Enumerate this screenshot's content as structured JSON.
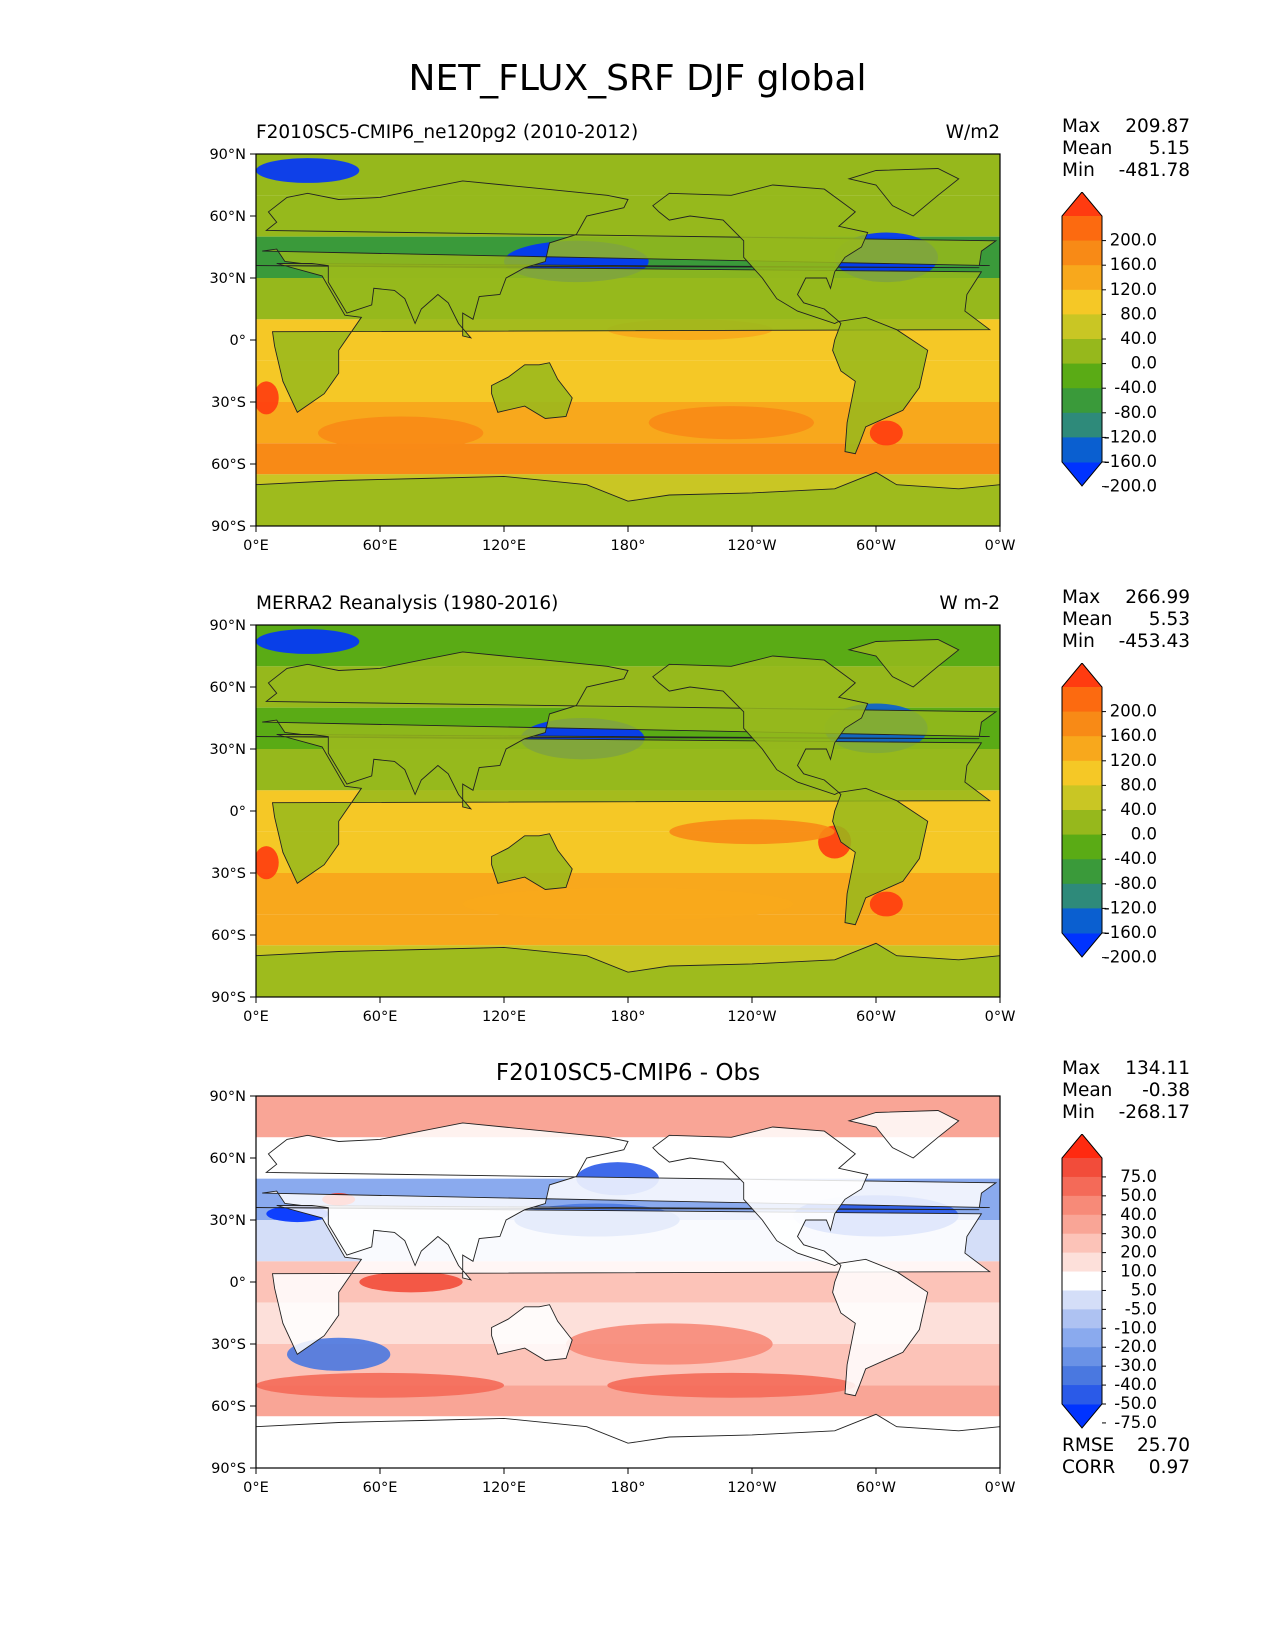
{
  "title": "NET_FLUX_SRF DJF global",
  "axes": {
    "lat_ticks": [
      "90°N",
      "60°N",
      "30°N",
      "0°",
      "30°S",
      "60°S",
      "90°S"
    ],
    "lon_ticks": [
      "0°E",
      "60°E",
      "120°E",
      "180°",
      "120°W",
      "60°W",
      "0°W"
    ]
  },
  "panels": [
    {
      "left_title": "F2010SC5-CMIP6_ne120pg2 (2010-2012)",
      "units": "W/m2",
      "center_title": "",
      "stats": {
        "max_label": "Max",
        "max": "209.87",
        "mean_label": "Mean",
        "mean": "5.15",
        "min_label": "Min",
        "min": "-481.78"
      },
      "colorbar": {
        "labels": [
          "200.0",
          "160.0",
          "120.0",
          "80.0",
          "40.0",
          "0.0",
          "-40.0",
          "-80.0",
          "-120.0",
          "-160.0",
          "-200.0"
        ],
        "colors": [
          "#0033ff",
          "#0a5fd0",
          "#2e8a7a",
          "#3a9a3a",
          "#5aab15",
          "#96b81c",
          "#c9c624",
          "#f5c826",
          "#f8a81c",
          "#f88a16",
          "#fc6a10",
          "#ff3b10"
        ]
      }
    },
    {
      "left_title": "MERRA2 Reanalysis (1980-2016)",
      "units": "W m-2",
      "center_title": "",
      "stats": {
        "max_label": "Max",
        "max": "266.99",
        "mean_label": "Mean",
        "mean": "5.53",
        "min_label": "Min",
        "min": "-453.43"
      },
      "colorbar": {
        "labels": [
          "200.0",
          "160.0",
          "120.0",
          "80.0",
          "40.0",
          "0.0",
          "-40.0",
          "-80.0",
          "-120.0",
          "-160.0",
          "-200.0"
        ],
        "colors": [
          "#0033ff",
          "#0a5fd0",
          "#2e8a7a",
          "#3a9a3a",
          "#5aab15",
          "#96b81c",
          "#c9c624",
          "#f5c826",
          "#f8a81c",
          "#f88a16",
          "#fc6a10",
          "#ff3b10"
        ]
      }
    },
    {
      "left_title": "",
      "units": "",
      "center_title": "F2010SC5-CMIP6 - Obs",
      "stats": {
        "max_label": "Max",
        "max": "134.11",
        "mean_label": "Mean",
        "mean": "-0.38",
        "min_label": "Min",
        "min": "-268.17"
      },
      "colorbar": {
        "labels": [
          "75.0",
          "50.0",
          "40.0",
          "30.0",
          "20.0",
          "10.0",
          "5.0",
          "-5.0",
          "-10.0",
          "-20.0",
          "-30.0",
          "-40.0",
          "-50.0",
          "-75.0"
        ],
        "colors": [
          "#0033ff",
          "#2a5ae8",
          "#4a78e0",
          "#6a92e6",
          "#8aaaee",
          "#aec2f2",
          "#d4def8",
          "#ffffff",
          "#fde0da",
          "#fcc3b8",
          "#f9a596",
          "#f78a78",
          "#f46a58",
          "#f24c3a",
          "#ff2a10"
        ]
      },
      "metrics": {
        "rmse_label": "RMSE",
        "rmse": "25.70",
        "corr_label": "CORR",
        "corr": "0.97"
      }
    }
  ],
  "map": {
    "ocean_lat_bands": [
      {
        "lat": [
          90,
          70
        ],
        "p1": "#96b81c",
        "p2": "#5aab15",
        "p3": "#f9a596"
      },
      {
        "lat": [
          70,
          50
        ],
        "p1": "#96b81c",
        "p2": "#96b81c",
        "p3": "#ffffff"
      },
      {
        "lat": [
          50,
          30
        ],
        "p1": "#3a9a3a",
        "p2": "#5aab15",
        "p3": "#8aaaee"
      },
      {
        "lat": [
          30,
          10
        ],
        "p1": "#96b81c",
        "p2": "#96b81c",
        "p3": "#d4def8"
      },
      {
        "lat": [
          10,
          -10
        ],
        "p1": "#f5c826",
        "p2": "#f5c826",
        "p3": "#fcc3b8"
      },
      {
        "lat": [
          -10,
          -30
        ],
        "p1": "#f5c826",
        "p2": "#f5c826",
        "p3": "#fde0da"
      },
      {
        "lat": [
          -30,
          -50
        ],
        "p1": "#f8a81c",
        "p2": "#f8a81c",
        "p3": "#fcc3b8"
      },
      {
        "lat": [
          -50,
          -65
        ],
        "p1": "#f88a16",
        "p2": "#f8a81c",
        "p3": "#f9a596"
      },
      {
        "lat": [
          -65,
          -90
        ],
        "p1": "#c9c624",
        "p2": "#c9c624",
        "p3": "#ffffff"
      }
    ],
    "land_color": {
      "p1": "#96b81c",
      "p2": "#96b81c",
      "p3": "#ffffff"
    }
  }
}
